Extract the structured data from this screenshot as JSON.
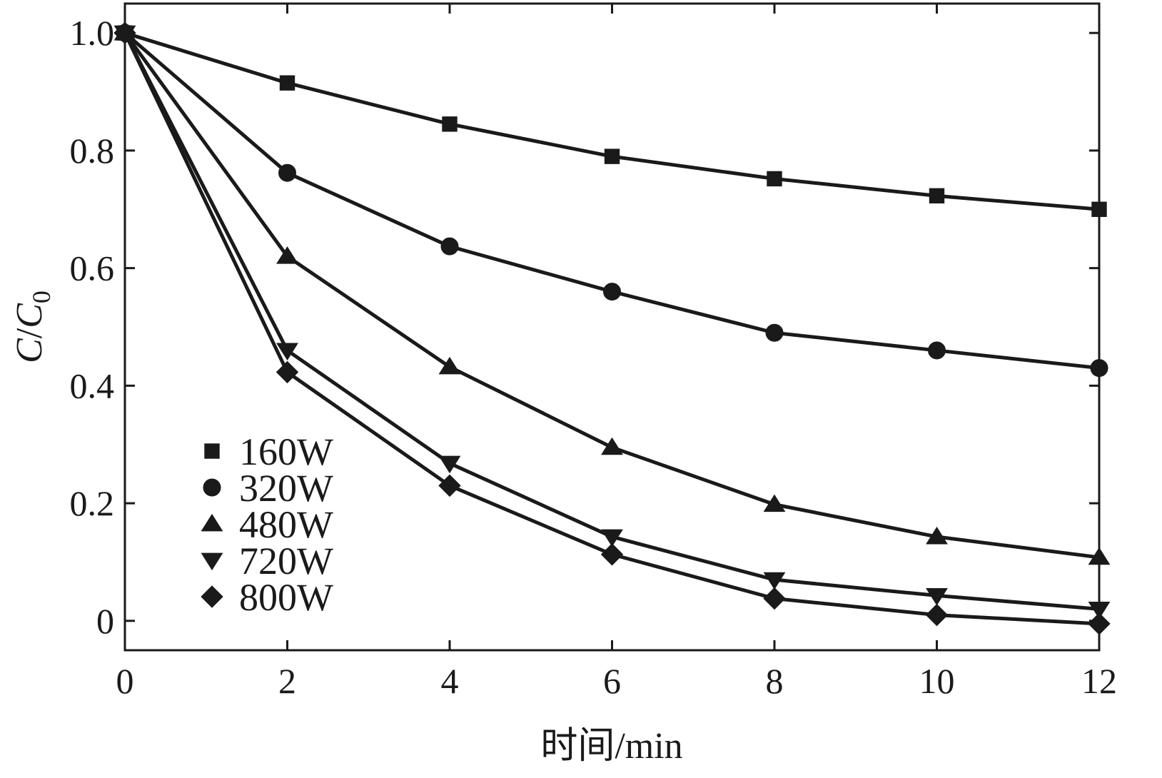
{
  "chart_data": {
    "type": "line",
    "title": "",
    "xlabel": "时间/min",
    "ylabel": {
      "c": "C",
      "slash": "/",
      "c0": "C",
      "sub": "0"
    },
    "xlim": [
      0,
      12
    ],
    "ylim": [
      -0.05,
      1.05
    ],
    "x_ticks": [
      {
        "value": 0,
        "label": "0"
      },
      {
        "value": 2,
        "label": "2"
      },
      {
        "value": 4,
        "label": "4"
      },
      {
        "value": 6,
        "label": "6"
      },
      {
        "value": 8,
        "label": "8"
      },
      {
        "value": 10,
        "label": "10"
      },
      {
        "value": 12,
        "label": "12"
      }
    ],
    "y_ticks": [
      {
        "value": 0,
        "label": "0"
      },
      {
        "value": 0.2,
        "label": "0.2"
      },
      {
        "value": 0.4,
        "label": "0.4"
      },
      {
        "value": 0.6,
        "label": "0.6"
      },
      {
        "value": 0.8,
        "label": "0.8"
      },
      {
        "value": 1.0,
        "label": "1.0"
      }
    ],
    "x": [
      0,
      2,
      4,
      6,
      8,
      10,
      12
    ],
    "series": [
      {
        "name": "160W",
        "marker": "square",
        "values": [
          1.0,
          0.915,
          0.845,
          0.79,
          0.752,
          0.723,
          0.7
        ]
      },
      {
        "name": "320W",
        "marker": "circle",
        "values": [
          1.0,
          0.762,
          0.637,
          0.56,
          0.49,
          0.46,
          0.43
        ]
      },
      {
        "name": "480W",
        "marker": "triangle-up",
        "values": [
          1.0,
          0.62,
          0.432,
          0.295,
          0.198,
          0.143,
          0.108
        ]
      },
      {
        "name": "720W",
        "marker": "triangle-down",
        "values": [
          1.0,
          0.46,
          0.268,
          0.143,
          0.07,
          0.043,
          0.02
        ]
      },
      {
        "name": "800W",
        "marker": "diamond",
        "values": [
          1.0,
          0.423,
          0.23,
          0.113,
          0.038,
          0.01,
          -0.005
        ]
      }
    ],
    "legend_position": "lower-left",
    "grid": false,
    "color": "#1a1a1a"
  }
}
